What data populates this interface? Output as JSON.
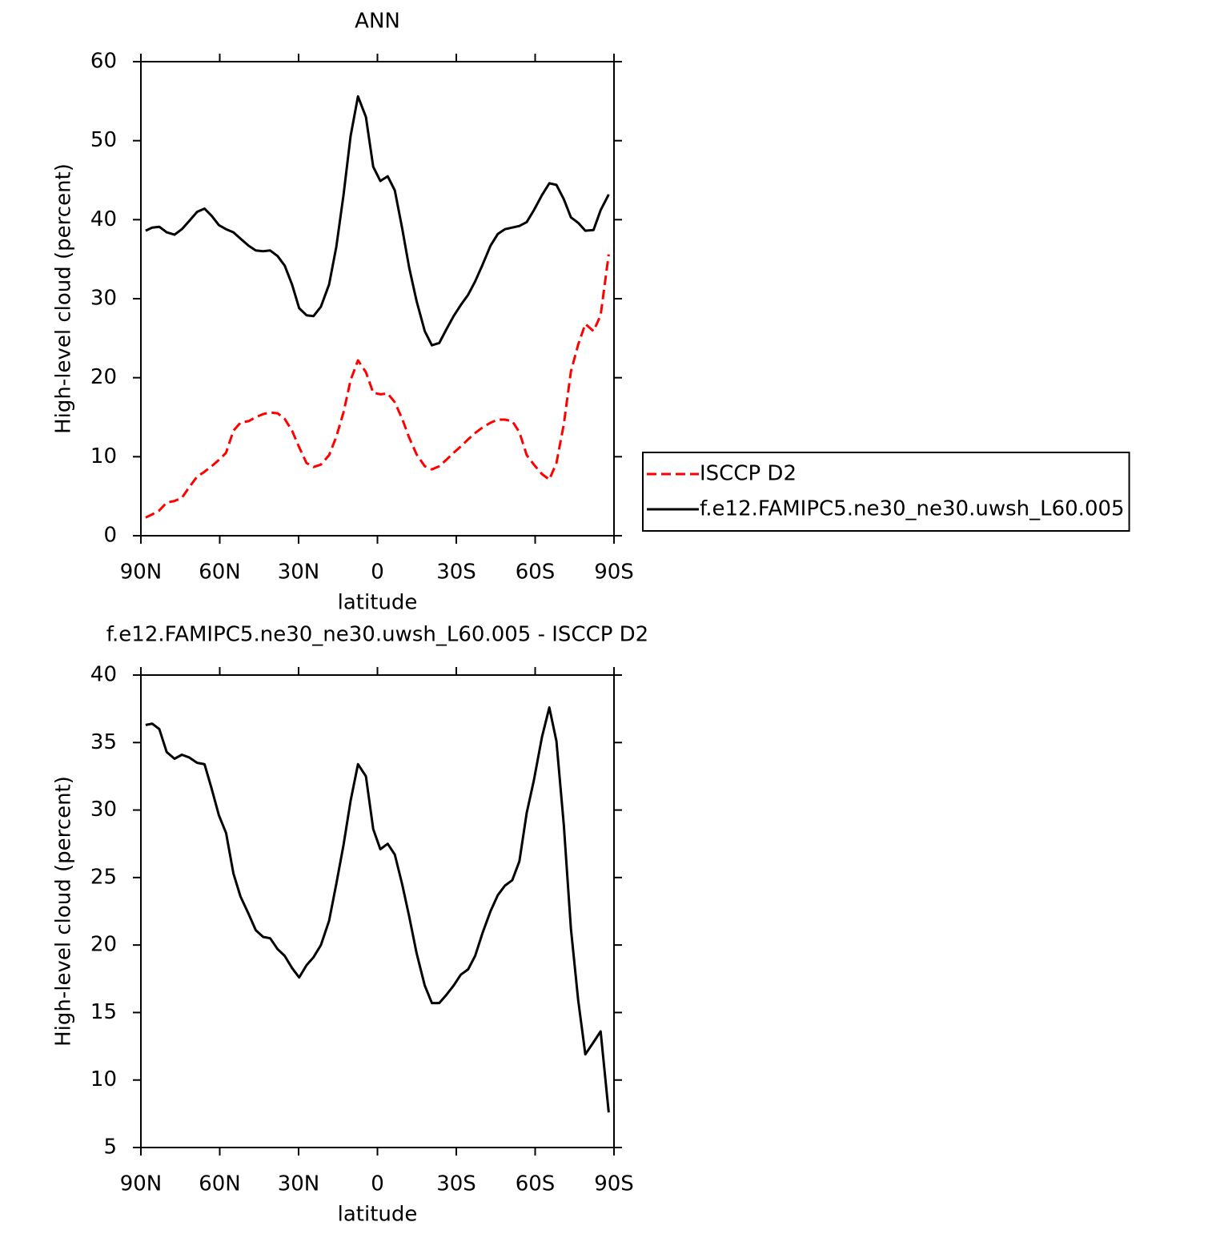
{
  "chart_data": [
    {
      "type": "line",
      "title": "ANN",
      "xlabel": "latitude",
      "ylabel": "High-level cloud (percent)",
      "x": [
        88.2,
        85.7,
        83,
        80.2,
        77.2,
        74.4,
        71.7,
        68.6,
        65.8,
        63.1,
        60.3,
        57.6,
        54.8,
        52.1,
        49,
        46.3,
        43.5,
        40.8,
        38,
        35.3,
        32.5,
        29.8,
        27,
        24.3,
        21.5,
        18.4,
        15.7,
        12.9,
        10.2,
        7.4,
        4.4,
        1.6,
        -1.1,
        -3.9,
        -6.6,
        -9.4,
        -12.1,
        -14.9,
        -18,
        -20.7,
        -23.5,
        -26.2,
        -29,
        -31.7,
        -34.5,
        -37.2,
        -40,
        -43,
        -45.8,
        -48.5,
        -51.3,
        -54,
        -56.8,
        -59.5,
        -62.6,
        -65.4,
        -68.1,
        -70.9,
        -73.6,
        -76.4,
        -79.1,
        -82.2,
        -84.9,
        -88
      ],
      "series": [
        {
          "name": "ISCCP D2",
          "color": "#ff0000",
          "dash": true,
          "values": [
            2.3,
            2.7,
            3.2,
            4.2,
            4.4,
            4.8,
            6.1,
            7.5,
            8.1,
            8.8,
            9.6,
            10.5,
            13.3,
            14.3,
            14.5,
            15.0,
            15.4,
            15.6,
            15.5,
            14.8,
            13.3,
            11.2,
            9.2,
            8.7,
            9.0,
            10.2,
            12.5,
            15.6,
            19.7,
            22.2,
            20.7,
            18.1,
            17.9,
            18.0,
            16.9,
            14.8,
            12.4,
            10.3,
            8.8,
            8.4,
            8.8,
            9.6,
            10.5,
            11.3,
            12.2,
            13.0,
            13.7,
            14.3,
            14.7,
            14.7,
            14.5,
            13.1,
            10.2,
            9.0,
            7.8,
            7.1,
            9.2,
            14.1,
            20.8,
            24.2,
            26.8,
            25.9,
            27.9,
            35.6
          ]
        },
        {
          "name": "f.e12.FAMIPC5.ne30_ne30.uwsh_L60.005",
          "color": "#000000",
          "dash": false,
          "values": [
            38.6,
            39.0,
            39.1,
            38.4,
            38.1,
            38.8,
            39.8,
            41.0,
            41.4,
            40.5,
            39.3,
            38.8,
            38.4,
            37.6,
            36.7,
            36.1,
            36.0,
            36.1,
            35.4,
            34.2,
            31.8,
            28.8,
            27.9,
            27.8,
            29.0,
            31.8,
            36.5,
            43.1,
            50.6,
            55.6,
            53.0,
            46.7,
            44.9,
            45.5,
            43.7,
            38.9,
            33.9,
            29.7,
            25.9,
            24.1,
            24.4,
            26.1,
            27.8,
            29.2,
            30.5,
            32.2,
            34.3,
            36.7,
            38.2,
            38.8,
            39.0,
            39.2,
            39.7,
            41.2,
            43.1,
            44.6,
            44.4,
            42.6,
            40.3,
            39.6,
            38.6,
            38.7,
            41.2,
            43.2
          ]
        }
      ],
      "xlim": [
        90,
        -90
      ],
      "xticks": [
        {
          "value": 90,
          "label": "90N"
        },
        {
          "value": 60,
          "label": "60N"
        },
        {
          "value": 30,
          "label": "30N"
        },
        0,
        {
          "value": -30,
          "label": "30S"
        },
        {
          "value": -60,
          "label": "60S"
        },
        {
          "value": -90,
          "label": "90S"
        }
      ],
      "ylim": [
        0,
        60
      ],
      "yticks": [
        0,
        10,
        20,
        30,
        40,
        50,
        60
      ],
      "legend": "right"
    },
    {
      "type": "line",
      "title": "f.e12.FAMIPC5.ne30_ne30.uwsh_L60.005 - ISCCP D2",
      "xlabel": "latitude",
      "ylabel": "High-level cloud (percent)",
      "x": [
        88.2,
        85.7,
        83,
        80.2,
        77.2,
        74.4,
        71.7,
        68.6,
        65.8,
        63.1,
        60.3,
        57.6,
        54.8,
        52.1,
        49,
        46.3,
        43.5,
        40.8,
        38,
        35.3,
        32.5,
        29.8,
        27,
        24.3,
        21.5,
        18.4,
        15.7,
        12.9,
        10.2,
        7.4,
        4.4,
        1.6,
        -1.1,
        -3.9,
        -6.6,
        -9.4,
        -12.1,
        -14.9,
        -18,
        -20.7,
        -23.5,
        -26.2,
        -29,
        -31.7,
        -34.5,
        -37.2,
        -40,
        -43,
        -45.8,
        -48.5,
        -51.3,
        -54,
        -56.8,
        -59.5,
        -62.6,
        -65.4,
        -68.1,
        -70.9,
        -73.6,
        -76.4,
        -79.1,
        -82.2,
        -84.9,
        -88
      ],
      "series": [
        {
          "color": "#000000",
          "dash": false,
          "values": [
            36.3,
            36.4,
            36.0,
            34.3,
            33.8,
            34.1,
            33.9,
            33.5,
            33.4,
            31.6,
            29.6,
            28.3,
            25.3,
            23.6,
            22.3,
            21.1,
            20.6,
            20.5,
            19.7,
            19.2,
            18.3,
            17.6,
            18.5,
            19.1,
            20.0,
            21.8,
            24.5,
            27.4,
            30.7,
            33.4,
            32.5,
            28.6,
            27.1,
            27.5,
            26.7,
            24.5,
            22.1,
            19.4,
            17.0,
            15.7,
            15.7,
            16.3,
            17.0,
            17.8,
            18.2,
            19.2,
            20.9,
            22.5,
            23.7,
            24.4,
            24.8,
            26.2,
            29.8,
            32.2,
            35.4,
            37.6,
            35.1,
            28.9,
            21.2,
            15.9,
            11.9,
            12.8,
            13.6,
            7.6
          ]
        }
      ],
      "xlim": [
        90,
        -90
      ],
      "xticks": [
        {
          "value": 90,
          "label": "90N"
        },
        {
          "value": 60,
          "label": "60N"
        },
        {
          "value": 30,
          "label": "30N"
        },
        0,
        {
          "value": -30,
          "label": "30S"
        },
        {
          "value": -60,
          "label": "60S"
        },
        {
          "value": -90,
          "label": "90S"
        }
      ],
      "ylim": [
        5,
        40
      ],
      "yticks": [
        5,
        10,
        15,
        20,
        25,
        30,
        35,
        40
      ]
    }
  ]
}
